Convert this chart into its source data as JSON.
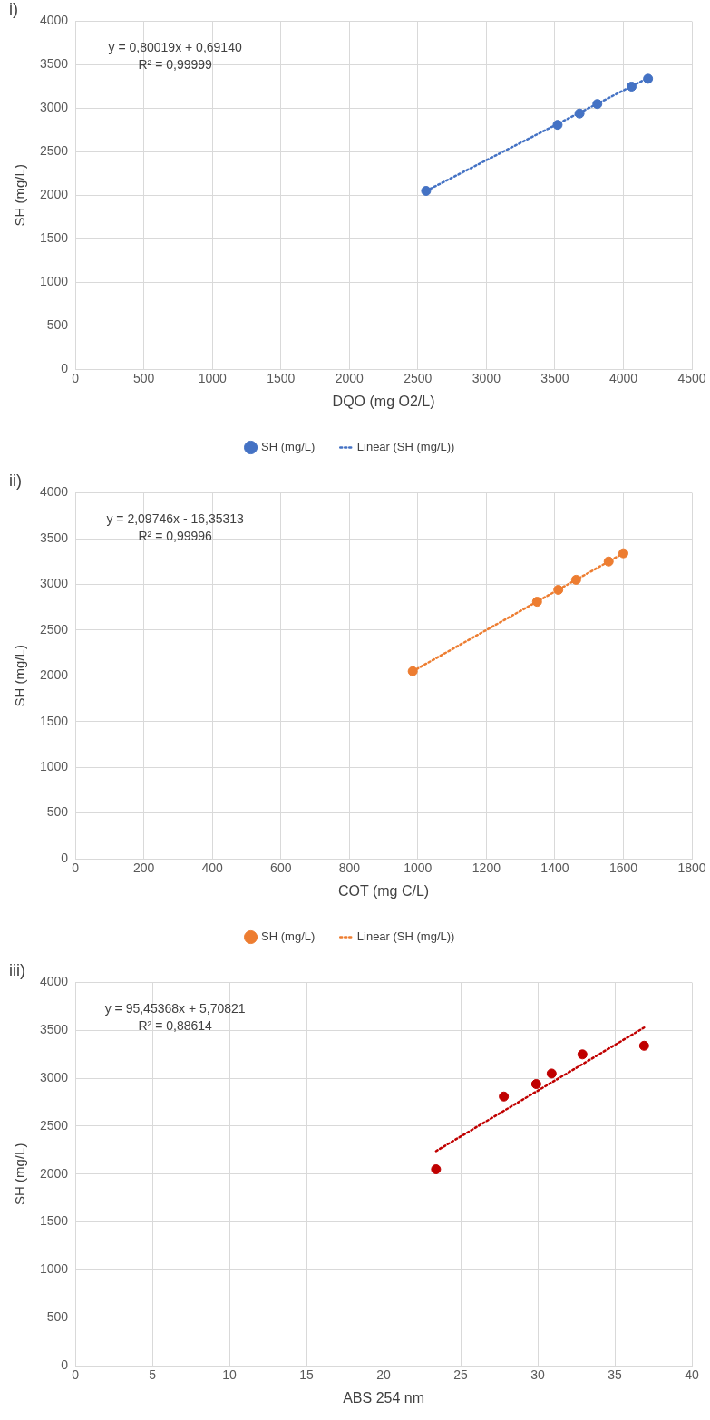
{
  "chart_data": [
    {
      "type": "scatter",
      "title": "i)",
      "xlabel": "DQO (mg O2/L)",
      "ylabel": "SH (mg/L)",
      "xlim": [
        0,
        4500
      ],
      "xticks": [
        0,
        500,
        1000,
        1500,
        2000,
        2500,
        3000,
        3500,
        4000,
        4500
      ],
      "ylim": [
        0,
        4000
      ],
      "yticks": [
        0,
        500,
        1000,
        1500,
        2000,
        2500,
        3000,
        3500,
        4000
      ],
      "grid": true,
      "legend": "bottom",
      "annotations": [
        "y = 0,80019x + 0,69140",
        "R² = 0,99999"
      ],
      "series": [
        {
          "name": "SH (mg/L)",
          "marker": "circle",
          "color": "#4472c4",
          "x": [
            2560,
            3520,
            3680,
            3810,
            4060,
            4180
          ],
          "values": [
            2050,
            2810,
            2940,
            3050,
            3250,
            3340
          ]
        },
        {
          "name": "Linear (SH (mg/L))",
          "type": "line",
          "marker": "none",
          "line_style": "dotted",
          "color": "#4472c4",
          "x": [
            2560,
            4180
          ],
          "values": [
            2050,
            3350
          ]
        }
      ]
    },
    {
      "type": "scatter",
      "title": "ii)",
      "xlabel": "COT (mg C/L)",
      "ylabel": "SH (mg/L)",
      "xlim": [
        0,
        1800
      ],
      "xticks": [
        0,
        200,
        400,
        600,
        800,
        1000,
        1200,
        1400,
        1600,
        1800
      ],
      "ylim": [
        0,
        4000
      ],
      "yticks": [
        0,
        500,
        1000,
        1500,
        2000,
        2500,
        3000,
        3500,
        4000
      ],
      "grid": true,
      "legend": "bottom",
      "annotations": [
        "y = 2,09746x - 16,35313",
        "R² = 0,99996"
      ],
      "series": [
        {
          "name": "SH (mg/L)",
          "marker": "circle",
          "color": "#ed7d31",
          "x": [
            985,
            1348,
            1410,
            1462,
            1557,
            1600
          ],
          "values": [
            2050,
            2810,
            2940,
            3050,
            3250,
            3340
          ]
        },
        {
          "name": "Linear (SH (mg/L))",
          "type": "line",
          "marker": "none",
          "line_style": "dotted",
          "color": "#ed7d31",
          "x": [
            985,
            1600
          ],
          "values": [
            2050,
            3340
          ]
        }
      ]
    },
    {
      "type": "scatter",
      "title": "iii)",
      "xlabel": "ABS 254 nm",
      "ylabel": "SH (mg/L)",
      "xlim": [
        0,
        40
      ],
      "xticks": [
        0,
        5,
        10,
        15,
        20,
        25,
        30,
        35,
        40
      ],
      "ylim": [
        0,
        4000
      ],
      "yticks": [
        0,
        500,
        1000,
        1500,
        2000,
        2500,
        3000,
        3500,
        4000
      ],
      "grid": true,
      "annotations": [
        "y = 95,45368x + 5,70821",
        "R² = 0,88614"
      ],
      "series": [
        {
          "marker": "circle",
          "color": "#c00000",
          "x": [
            23.4,
            27.8,
            29.9,
            30.9,
            32.9,
            36.9
          ],
          "values": [
            2050,
            2810,
            2940,
            3050,
            3250,
            3340
          ]
        },
        {
          "type": "line",
          "marker": "none",
          "line_style": "dotted",
          "color": "#c00000",
          "x": [
            23.4,
            36.9
          ],
          "values": [
            2240,
            3530
          ]
        }
      ]
    }
  ]
}
